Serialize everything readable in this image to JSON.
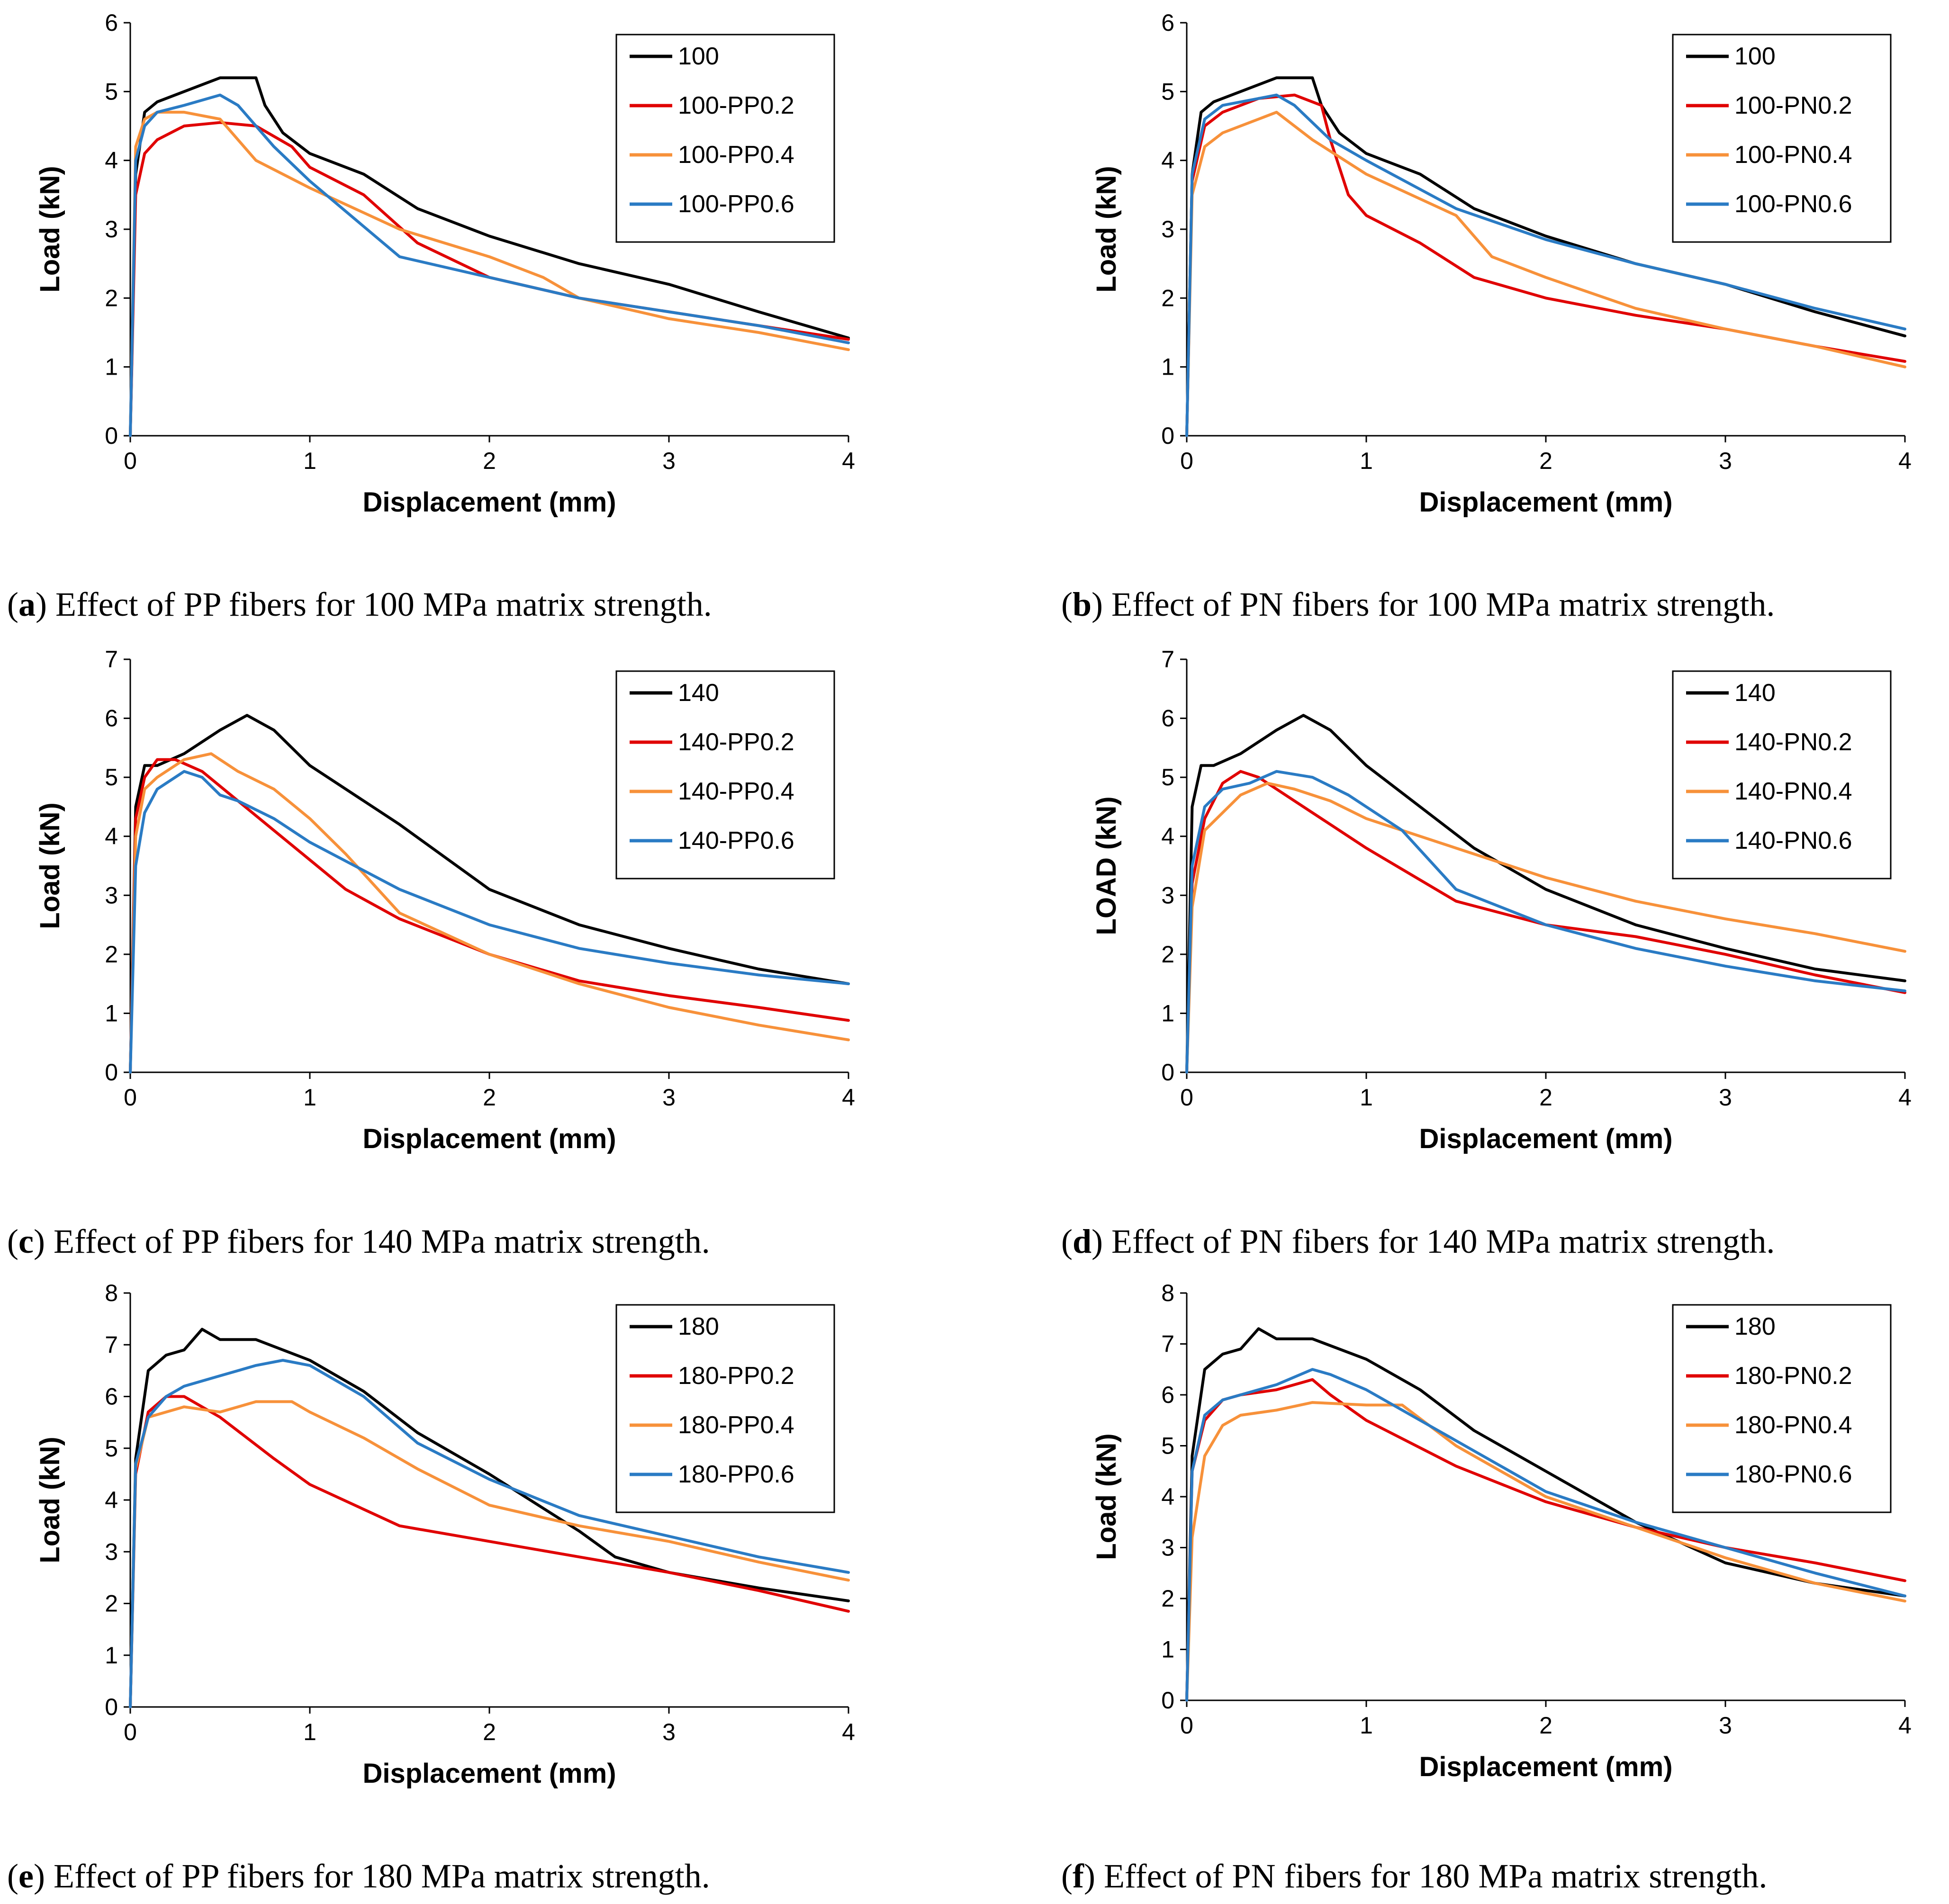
{
  "colors": {
    "black": "#000000",
    "red": "#e00000",
    "orange": "#f7913a",
    "blue": "#2a7bc4"
  },
  "chart_data": [
    {
      "type": "line",
      "panel": "a",
      "caption_label": "a",
      "caption_text": " Effect of PP fibers for 100 MPa matrix strength.",
      "xlabel": "Displacement (mm)",
      "ylabel": "Load (kN)",
      "xlim": [
        0,
        4
      ],
      "ylim": [
        0,
        6
      ],
      "xticks": [
        "0",
        "1",
        "2",
        "3",
        "4"
      ],
      "yticks": [
        "0",
        "1",
        "2",
        "3",
        "4",
        "5",
        "6"
      ],
      "series": [
        {
          "name": "100",
          "color": "#000000",
          "x": [
            0,
            0.03,
            0.08,
            0.15,
            0.3,
            0.5,
            0.7,
            0.75,
            0.85,
            1.0,
            1.3,
            1.6,
            2.0,
            2.5,
            3.0,
            3.5,
            4.0
          ],
          "y": [
            0,
            3.8,
            4.7,
            4.85,
            5.0,
            5.2,
            5.2,
            4.8,
            4.4,
            4.1,
            3.8,
            3.3,
            2.9,
            2.5,
            2.2,
            1.8,
            1.42
          ]
        },
        {
          "name": "100-PP0.2",
          "color": "#e00000",
          "x": [
            0,
            0.03,
            0.08,
            0.15,
            0.3,
            0.5,
            0.7,
            0.9,
            1.0,
            1.3,
            1.6,
            2.0,
            2.5,
            3.0,
            3.5,
            4.0
          ],
          "y": [
            0,
            3.5,
            4.1,
            4.3,
            4.5,
            4.55,
            4.5,
            4.2,
            3.9,
            3.5,
            2.8,
            2.3,
            2.0,
            1.8,
            1.6,
            1.4
          ]
        },
        {
          "name": "100-PP0.4",
          "color": "#f7913a",
          "x": [
            0,
            0.03,
            0.08,
            0.15,
            0.3,
            0.5,
            0.7,
            1.0,
            1.5,
            2.0,
            2.3,
            2.5,
            3.0,
            3.5,
            4.0
          ],
          "y": [
            0,
            4.2,
            4.6,
            4.7,
            4.7,
            4.6,
            4.0,
            3.6,
            3.0,
            2.6,
            2.3,
            2.0,
            1.7,
            1.5,
            1.25
          ]
        },
        {
          "name": "100-PP0.6",
          "color": "#2a7bc4",
          "x": [
            0,
            0.03,
            0.08,
            0.15,
            0.3,
            0.5,
            0.6,
            0.8,
            1.0,
            1.5,
            2.0,
            2.5,
            3.0,
            3.5,
            4.0
          ],
          "y": [
            0,
            4.0,
            4.5,
            4.7,
            4.8,
            4.95,
            4.8,
            4.2,
            3.7,
            2.6,
            2.3,
            2.0,
            1.8,
            1.6,
            1.35
          ]
        }
      ]
    },
    {
      "type": "line",
      "panel": "b",
      "caption_label": "b",
      "caption_text": " Effect of PN fibers for 100 MPa matrix strength.",
      "xlabel": "Displacement (mm)",
      "ylabel": "Load (kN)",
      "xlim": [
        0,
        4
      ],
      "ylim": [
        0,
        6
      ],
      "xticks": [
        "0",
        "1",
        "2",
        "3",
        "4"
      ],
      "yticks": [
        "0",
        "1",
        "2",
        "3",
        "4",
        "5",
        "6"
      ],
      "series": [
        {
          "name": "100",
          "color": "#000000",
          "x": [
            0,
            0.03,
            0.08,
            0.15,
            0.3,
            0.5,
            0.7,
            0.75,
            0.85,
            1.0,
            1.3,
            1.6,
            2.0,
            2.5,
            3.0,
            3.5,
            4.0
          ],
          "y": [
            0,
            3.8,
            4.7,
            4.85,
            5.0,
            5.2,
            5.2,
            4.8,
            4.4,
            4.1,
            3.8,
            3.3,
            2.9,
            2.5,
            2.2,
            1.8,
            1.45
          ]
        },
        {
          "name": "100-PN0.2",
          "color": "#e00000",
          "x": [
            0,
            0.03,
            0.1,
            0.2,
            0.4,
            0.6,
            0.75,
            0.8,
            0.9,
            1.0,
            1.3,
            1.6,
            2.0,
            2.5,
            3.0,
            3.5,
            4.0
          ],
          "y": [
            0,
            3.7,
            4.5,
            4.7,
            4.9,
            4.95,
            4.8,
            4.3,
            3.5,
            3.2,
            2.8,
            2.3,
            2.0,
            1.75,
            1.55,
            1.3,
            1.08
          ]
        },
        {
          "name": "100-PN0.4",
          "color": "#f7913a",
          "x": [
            0,
            0.03,
            0.1,
            0.2,
            0.4,
            0.5,
            0.7,
            1.0,
            1.5,
            1.7,
            2.0,
            2.5,
            3.0,
            3.5,
            4.0
          ],
          "y": [
            0,
            3.5,
            4.2,
            4.4,
            4.6,
            4.7,
            4.3,
            3.8,
            3.2,
            2.6,
            2.3,
            1.85,
            1.55,
            1.3,
            1.0
          ]
        },
        {
          "name": "100-PN0.6",
          "color": "#2a7bc4",
          "x": [
            0,
            0.03,
            0.1,
            0.2,
            0.4,
            0.5,
            0.6,
            0.8,
            1.0,
            1.5,
            2.0,
            2.5,
            3.0,
            3.5,
            4.0
          ],
          "y": [
            0,
            3.8,
            4.6,
            4.8,
            4.9,
            4.95,
            4.8,
            4.3,
            4.0,
            3.3,
            2.85,
            2.5,
            2.2,
            1.85,
            1.55
          ]
        }
      ]
    },
    {
      "type": "line",
      "panel": "c",
      "caption_label": "c",
      "caption_text": " Effect of PP fibers for 140 MPa matrix strength.",
      "xlabel": "Displacement (mm)",
      "ylabel": "Load (kN)",
      "xlim": [
        0,
        4
      ],
      "ylim": [
        0,
        7
      ],
      "xticks": [
        "0",
        "1",
        "2",
        "3",
        "4"
      ],
      "yticks": [
        "0",
        "1",
        "2",
        "3",
        "4",
        "5",
        "6",
        "7"
      ],
      "series": [
        {
          "name": "140",
          "color": "#000000",
          "x": [
            0,
            0.03,
            0.08,
            0.15,
            0.3,
            0.4,
            0.5,
            0.65,
            0.8,
            1.0,
            1.5,
            2.0,
            2.5,
            3.0,
            3.5,
            4.0
          ],
          "y": [
            0,
            4.5,
            5.2,
            5.2,
            5.4,
            5.6,
            5.8,
            6.05,
            5.8,
            5.2,
            4.2,
            3.1,
            2.5,
            2.1,
            1.75,
            1.5
          ]
        },
        {
          "name": "140-PP0.2",
          "color": "#e00000",
          "x": [
            0,
            0.03,
            0.08,
            0.15,
            0.25,
            0.4,
            0.6,
            0.8,
            1.0,
            1.2,
            1.5,
            2.0,
            2.5,
            3.0,
            3.5,
            4.0
          ],
          "y": [
            0,
            4.3,
            5.0,
            5.3,
            5.3,
            5.1,
            4.6,
            4.1,
            3.6,
            3.1,
            2.6,
            2.0,
            1.55,
            1.3,
            1.1,
            0.88
          ]
        },
        {
          "name": "140-PP0.4",
          "color": "#f7913a",
          "x": [
            0,
            0.03,
            0.08,
            0.15,
            0.3,
            0.45,
            0.6,
            0.8,
            1.0,
            1.2,
            1.5,
            2.0,
            2.5,
            3.0,
            3.5,
            4.0
          ],
          "y": [
            0,
            4.0,
            4.8,
            5.0,
            5.3,
            5.4,
            5.1,
            4.8,
            4.3,
            3.7,
            2.7,
            2.0,
            1.5,
            1.1,
            0.8,
            0.55
          ]
        },
        {
          "name": "140-PP0.6",
          "color": "#2a7bc4",
          "x": [
            0,
            0.03,
            0.08,
            0.15,
            0.3,
            0.4,
            0.5,
            0.6,
            0.8,
            1.0,
            1.5,
            2.0,
            2.5,
            3.0,
            3.5,
            4.0
          ],
          "y": [
            0,
            3.5,
            4.4,
            4.8,
            5.1,
            5.0,
            4.7,
            4.6,
            4.3,
            3.9,
            3.1,
            2.5,
            2.1,
            1.85,
            1.65,
            1.5
          ]
        }
      ]
    },
    {
      "type": "line",
      "panel": "d",
      "caption_label": "d",
      "caption_text": " Effect of PN fibers for 140 MPa matrix strength.",
      "xlabel": "Displacement (mm)",
      "ylabel": "LOAD (kN)",
      "xlim": [
        0,
        4
      ],
      "ylim": [
        0,
        7
      ],
      "xticks": [
        "0",
        "1",
        "2",
        "3",
        "4"
      ],
      "yticks": [
        "0",
        "1",
        "2",
        "3",
        "4",
        "5",
        "6",
        "7"
      ],
      "series": [
        {
          "name": "140",
          "color": "#000000",
          "x": [
            0,
            0.03,
            0.08,
            0.15,
            0.3,
            0.4,
            0.5,
            0.65,
            0.8,
            1.0,
            1.6,
            2.0,
            2.5,
            3.0,
            3.5,
            4.0
          ],
          "y": [
            0,
            4.5,
            5.2,
            5.2,
            5.4,
            5.6,
            5.8,
            6.05,
            5.8,
            5.2,
            3.8,
            3.1,
            2.5,
            2.1,
            1.75,
            1.55
          ]
        },
        {
          "name": "140-PN0.2",
          "color": "#e00000",
          "x": [
            0,
            0.03,
            0.1,
            0.2,
            0.3,
            0.4,
            0.6,
            0.8,
            1.0,
            1.5,
            2.0,
            2.5,
            3.0,
            3.5,
            4.0
          ],
          "y": [
            0,
            3.2,
            4.3,
            4.9,
            5.1,
            5.0,
            4.6,
            4.2,
            3.8,
            2.9,
            2.5,
            2.3,
            2.0,
            1.65,
            1.35
          ]
        },
        {
          "name": "140-PN0.4",
          "color": "#f7913a",
          "x": [
            0,
            0.03,
            0.1,
            0.2,
            0.3,
            0.45,
            0.6,
            0.8,
            1.0,
            1.5,
            2.0,
            2.5,
            3.0,
            3.5,
            4.0
          ],
          "y": [
            0,
            2.8,
            4.1,
            4.4,
            4.7,
            4.9,
            4.8,
            4.6,
            4.3,
            3.8,
            3.3,
            2.9,
            2.6,
            2.35,
            2.05
          ]
        },
        {
          "name": "140-PN0.6",
          "color": "#2a7bc4",
          "x": [
            0,
            0.03,
            0.1,
            0.2,
            0.35,
            0.5,
            0.7,
            0.9,
            1.2,
            1.5,
            2.0,
            2.5,
            3.0,
            3.5,
            4.0
          ],
          "y": [
            0,
            3.5,
            4.5,
            4.8,
            4.9,
            5.1,
            5.0,
            4.7,
            4.1,
            3.1,
            2.5,
            2.1,
            1.8,
            1.55,
            1.38
          ]
        }
      ]
    },
    {
      "type": "line",
      "panel": "e",
      "caption_label": "e",
      "caption_text": " Effect of PP fibers for 180 MPa matrix strength.",
      "xlabel": "Displacement (mm)",
      "ylabel": "Load (kN)",
      "xlim": [
        0,
        4
      ],
      "ylim": [
        0,
        8
      ],
      "xticks": [
        "0",
        "1",
        "2",
        "3",
        "4"
      ],
      "yticks": [
        "0",
        "1",
        "2",
        "3",
        "4",
        "5",
        "6",
        "7",
        "8"
      ],
      "series": [
        {
          "name": "180",
          "color": "#000000",
          "x": [
            0,
            0.03,
            0.1,
            0.2,
            0.3,
            0.4,
            0.5,
            0.7,
            1.0,
            1.3,
            1.6,
            2.0,
            2.5,
            2.7,
            3.0,
            3.5,
            4.0
          ],
          "y": [
            0,
            4.8,
            6.5,
            6.8,
            6.9,
            7.3,
            7.1,
            7.1,
            6.7,
            6.1,
            5.3,
            4.5,
            3.4,
            2.9,
            2.6,
            2.3,
            2.05
          ]
        },
        {
          "name": "180-PP0.2",
          "color": "#e00000",
          "x": [
            0,
            0.03,
            0.1,
            0.2,
            0.3,
            0.5,
            0.8,
            1.0,
            1.5,
            2.0,
            2.5,
            3.0,
            3.5,
            4.0
          ],
          "y": [
            0,
            4.5,
            5.7,
            6.0,
            6.0,
            5.6,
            4.8,
            4.3,
            3.5,
            3.2,
            2.9,
            2.6,
            2.25,
            1.85
          ]
        },
        {
          "name": "180-PP0.4",
          "color": "#f7913a",
          "x": [
            0,
            0.03,
            0.1,
            0.2,
            0.3,
            0.5,
            0.7,
            0.9,
            1.0,
            1.3,
            1.6,
            2.0,
            2.5,
            3.0,
            3.5,
            4.0
          ],
          "y": [
            0,
            4.6,
            5.6,
            5.7,
            5.8,
            5.7,
            5.9,
            5.9,
            5.7,
            5.2,
            4.6,
            3.9,
            3.5,
            3.2,
            2.8,
            2.45
          ]
        },
        {
          "name": "180-PP0.6",
          "color": "#2a7bc4",
          "x": [
            0,
            0.03,
            0.1,
            0.2,
            0.3,
            0.5,
            0.7,
            0.85,
            1.0,
            1.3,
            1.6,
            2.0,
            2.5,
            3.0,
            3.5,
            4.0
          ],
          "y": [
            0,
            4.7,
            5.6,
            6.0,
            6.2,
            6.4,
            6.6,
            6.7,
            6.6,
            6.0,
            5.1,
            4.4,
            3.7,
            3.3,
            2.9,
            2.6
          ]
        }
      ]
    },
    {
      "type": "line",
      "panel": "f",
      "caption_label": "f",
      "caption_text": " Effect of PN fibers for 180 MPa matrix strength.",
      "xlabel": "Displacement (mm)",
      "ylabel": "Load (kN)",
      "xlim": [
        0,
        4
      ],
      "ylim": [
        0,
        8
      ],
      "xticks": [
        "0",
        "1",
        "2",
        "3",
        "4"
      ],
      "yticks": [
        "0",
        "1",
        "2",
        "3",
        "4",
        "5",
        "6",
        "7",
        "8"
      ],
      "series": [
        {
          "name": "180",
          "color": "#000000",
          "x": [
            0,
            0.03,
            0.1,
            0.2,
            0.3,
            0.4,
            0.5,
            0.7,
            1.0,
            1.3,
            1.6,
            2.0,
            2.5,
            3.0,
            3.5,
            4.0
          ],
          "y": [
            0,
            4.8,
            6.5,
            6.8,
            6.9,
            7.3,
            7.1,
            7.1,
            6.7,
            6.1,
            5.3,
            4.5,
            3.5,
            2.7,
            2.3,
            2.05
          ]
        },
        {
          "name": "180-PN0.2",
          "color": "#e00000",
          "x": [
            0,
            0.03,
            0.1,
            0.2,
            0.3,
            0.5,
            0.7,
            0.8,
            1.0,
            1.5,
            2.0,
            2.5,
            3.0,
            3.5,
            4.0
          ],
          "y": [
            0,
            4.5,
            5.5,
            5.9,
            6.0,
            6.1,
            6.3,
            6.0,
            5.5,
            4.6,
            3.9,
            3.4,
            3.0,
            2.7,
            2.35
          ]
        },
        {
          "name": "180-PN0.4",
          "color": "#f7913a",
          "x": [
            0,
            0.03,
            0.1,
            0.2,
            0.3,
            0.5,
            0.7,
            1.0,
            1.2,
            1.5,
            2.0,
            2.5,
            3.0,
            3.5,
            4.0
          ],
          "y": [
            0,
            3.2,
            4.8,
            5.4,
            5.6,
            5.7,
            5.85,
            5.8,
            5.8,
            5.0,
            4.0,
            3.4,
            2.8,
            2.3,
            1.95
          ]
        },
        {
          "name": "180-PN0.6",
          "color": "#2a7bc4",
          "x": [
            0,
            0.03,
            0.1,
            0.2,
            0.3,
            0.5,
            0.7,
            0.8,
            1.0,
            1.3,
            1.6,
            2.0,
            2.5,
            3.0,
            3.5,
            4.0
          ],
          "y": [
            0,
            4.5,
            5.6,
            5.9,
            6.0,
            6.2,
            6.5,
            6.4,
            6.1,
            5.5,
            4.9,
            4.1,
            3.5,
            3.0,
            2.5,
            2.05
          ]
        }
      ]
    }
  ]
}
